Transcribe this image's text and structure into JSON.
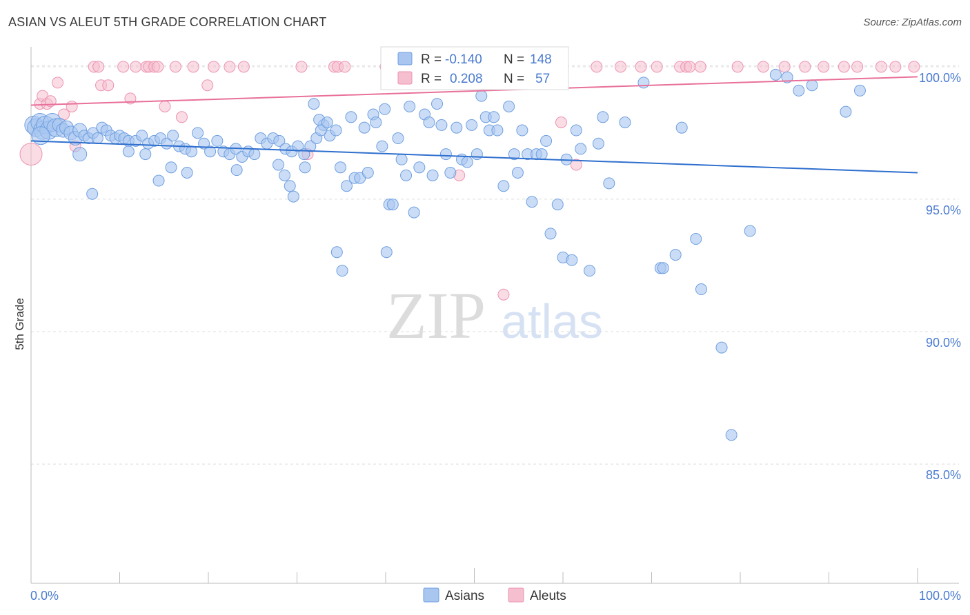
{
  "title": "ASIAN VS ALEUT 5TH GRADE CORRELATION CHART",
  "source": "Source: ZipAtlas.com",
  "watermark": {
    "zip": "ZIP",
    "atlas": "atlas"
  },
  "colors": {
    "asian_fill": "#a9c6f0",
    "asian_stroke": "#6f9fe0",
    "asian_line": "#2f6fce",
    "aleut_fill": "#f6bfd0",
    "aleut_stroke": "#ec93b1",
    "aleut_line": "#e8709a",
    "tick_text": "#4a7bd0",
    "grid": "#dddddd"
  },
  "legend": {
    "rows": [
      {
        "r_label": "R =",
        "r_value": "-0.140",
        "n_label": "N =",
        "n_value": "148"
      },
      {
        "r_label": "R =",
        "r_value": "0.208",
        "n_label": "N =",
        "n_value": "57"
      }
    ]
  },
  "chart_data": {
    "type": "scatter",
    "title": "ASIAN VS ALEUT 5TH GRADE CORRELATION CHART",
    "xlabel": "",
    "ylabel": "5th Grade",
    "xlim": [
      0,
      100
    ],
    "ylim": [
      80.5,
      100.75
    ],
    "x_tick_labels": [
      "0.0%",
      "100.0%"
    ],
    "y_ticks": [
      85,
      90,
      95,
      100
    ],
    "y_tick_labels": [
      "85.0%",
      "90.0%",
      "95.0%",
      "100.0%"
    ],
    "grid": true,
    "legend_position": "top-center",
    "series": [
      {
        "name": "Asians",
        "trend": {
          "x": [
            0,
            100
          ],
          "y": [
            97.2,
            96.0
          ]
        },
        "points": [
          [
            0.3,
            97.8
          ],
          [
            0.6,
            97.7
          ],
          [
            1.0,
            97.9
          ],
          [
            1.3,
            97.6
          ],
          [
            1.6,
            97.8
          ],
          [
            2.0,
            97.6
          ],
          [
            2.4,
            97.9
          ],
          [
            2.8,
            97.7
          ],
          [
            3.2,
            97.8
          ],
          [
            3.6,
            97.6
          ],
          [
            4.0,
            97.7
          ],
          [
            4.5,
            97.5
          ],
          [
            5.0,
            97.3
          ],
          [
            5.5,
            97.6
          ],
          [
            6.0,
            97.4
          ],
          [
            6.5,
            97.3
          ],
          [
            7.0,
            97.5
          ],
          [
            7.5,
            97.3
          ],
          [
            8.0,
            97.7
          ],
          [
            8.5,
            97.6
          ],
          [
            9.0,
            97.4
          ],
          [
            9.5,
            97.3
          ],
          [
            10.0,
            97.4
          ],
          [
            10.5,
            97.3
          ],
          [
            11.0,
            97.2
          ],
          [
            11.8,
            97.2
          ],
          [
            12.5,
            97.4
          ],
          [
            13.2,
            97.1
          ],
          [
            13.9,
            97.2
          ],
          [
            14.6,
            97.3
          ],
          [
            15.3,
            97.1
          ],
          [
            16.0,
            97.4
          ],
          [
            16.7,
            97.0
          ],
          [
            17.4,
            96.9
          ],
          [
            18.1,
            96.8
          ],
          [
            18.8,
            97.5
          ],
          [
            19.5,
            97.1
          ],
          [
            20.2,
            96.8
          ],
          [
            21.0,
            97.2
          ],
          [
            21.7,
            96.8
          ],
          [
            22.4,
            96.7
          ],
          [
            23.1,
            96.9
          ],
          [
            23.8,
            96.6
          ],
          [
            24.5,
            96.8
          ],
          [
            25.2,
            96.7
          ],
          [
            25.9,
            97.3
          ],
          [
            26.6,
            97.1
          ],
          [
            27.3,
            97.3
          ],
          [
            28.0,
            97.2
          ],
          [
            28.7,
            96.9
          ],
          [
            29.4,
            96.8
          ],
          [
            30.1,
            97.0
          ],
          [
            30.8,
            96.7
          ],
          [
            31.5,
            97.0
          ],
          [
            32.2,
            97.3
          ],
          [
            33.0,
            97.8
          ],
          [
            33.7,
            97.4
          ],
          [
            34.4,
            97.6
          ],
          [
            5.5,
            96.7
          ],
          [
            11.0,
            96.8
          ],
          [
            12.9,
            96.7
          ],
          [
            14.4,
            95.7
          ],
          [
            15.8,
            96.2
          ],
          [
            17.6,
            96.0
          ],
          [
            23.2,
            96.1
          ],
          [
            27.9,
            96.3
          ],
          [
            28.6,
            95.9
          ],
          [
            29.2,
            95.5
          ],
          [
            29.6,
            95.1
          ],
          [
            30.9,
            96.2
          ],
          [
            31.9,
            98.6
          ],
          [
            32.5,
            98.0
          ],
          [
            32.7,
            97.6
          ],
          [
            33.4,
            97.9
          ],
          [
            34.9,
            96.2
          ],
          [
            35.6,
            95.5
          ],
          [
            36.1,
            98.1
          ],
          [
            36.5,
            95.8
          ],
          [
            37.1,
            95.8
          ],
          [
            37.6,
            97.7
          ],
          [
            38.0,
            96.0
          ],
          [
            38.6,
            98.2
          ],
          [
            38.9,
            97.9
          ],
          [
            39.6,
            97.0
          ],
          [
            39.9,
            98.4
          ],
          [
            40.4,
            94.8
          ],
          [
            40.8,
            94.8
          ],
          [
            41.4,
            97.3
          ],
          [
            41.8,
            96.5
          ],
          [
            42.3,
            95.9
          ],
          [
            42.7,
            98.5
          ],
          [
            43.2,
            94.5
          ],
          [
            43.8,
            96.2
          ],
          [
            44.4,
            98.2
          ],
          [
            44.9,
            97.9
          ],
          [
            45.3,
            95.9
          ],
          [
            45.8,
            98.6
          ],
          [
            46.3,
            97.8
          ],
          [
            46.8,
            96.7
          ],
          [
            47.3,
            96.0
          ],
          [
            48.0,
            97.7
          ],
          [
            48.6,
            96.5
          ],
          [
            49.2,
            96.4
          ],
          [
            49.7,
            97.8
          ],
          [
            50.3,
            96.7
          ],
          [
            50.8,
            98.9
          ],
          [
            51.3,
            98.1
          ],
          [
            51.7,
            97.6
          ],
          [
            52.2,
            98.1
          ],
          [
            52.6,
            97.6
          ],
          [
            53.3,
            95.5
          ],
          [
            53.9,
            98.5
          ],
          [
            54.5,
            96.7
          ],
          [
            54.9,
            96.0
          ],
          [
            55.4,
            97.6
          ],
          [
            56.0,
            96.7
          ],
          [
            56.5,
            94.9
          ],
          [
            57.0,
            96.7
          ],
          [
            57.6,
            96.7
          ],
          [
            58.1,
            97.2
          ],
          [
            58.6,
            93.7
          ],
          [
            59.4,
            94.8
          ],
          [
            60.0,
            92.8
          ],
          [
            60.4,
            96.5
          ],
          [
            61.0,
            92.7
          ],
          [
            61.5,
            97.6
          ],
          [
            62.0,
            96.9
          ],
          [
            63.0,
            92.3
          ],
          [
            64.0,
            97.1
          ],
          [
            64.5,
            98.1
          ],
          [
            65.2,
            95.6
          ],
          [
            67.0,
            97.9
          ],
          [
            69.1,
            99.4
          ],
          [
            71.0,
            92.4
          ],
          [
            71.3,
            92.4
          ],
          [
            72.7,
            92.9
          ],
          [
            73.4,
            97.7
          ],
          [
            75.0,
            93.5
          ],
          [
            75.6,
            91.6
          ],
          [
            77.9,
            89.4
          ],
          [
            79.0,
            86.1
          ],
          [
            81.1,
            93.8
          ],
          [
            84.0,
            99.7
          ],
          [
            85.3,
            99.6
          ],
          [
            86.6,
            99.1
          ],
          [
            88.1,
            99.3
          ],
          [
            91.9,
            98.3
          ],
          [
            93.5,
            99.1
          ],
          [
            34.5,
            93.0
          ],
          [
            35.1,
            92.3
          ],
          [
            40.1,
            93.0
          ],
          [
            1.1,
            97.4
          ],
          [
            6.9,
            95.2
          ]
        ],
        "sizes_note": "larger markers near x=0 cluster"
      },
      {
        "name": "Aleuts",
        "trend": {
          "x": [
            0,
            100
          ],
          "y": [
            98.55,
            99.62
          ]
        },
        "points": [
          [
            0.0,
            96.7
          ],
          [
            1.0,
            98.6
          ],
          [
            1.3,
            98.9
          ],
          [
            1.8,
            98.6
          ],
          [
            2.2,
            98.7
          ],
          [
            3.0,
            99.4
          ],
          [
            3.7,
            98.2
          ],
          [
            4.6,
            98.5
          ],
          [
            5.0,
            97.0
          ],
          [
            7.1,
            100.0
          ],
          [
            7.6,
            100.0
          ],
          [
            7.9,
            99.3
          ],
          [
            8.7,
            99.3
          ],
          [
            10.4,
            100.0
          ],
          [
            11.2,
            98.8
          ],
          [
            11.8,
            100.0
          ],
          [
            13.0,
            100.0
          ],
          [
            13.3,
            100.0
          ],
          [
            13.9,
            100.0
          ],
          [
            14.3,
            100.0
          ],
          [
            15.1,
            98.5
          ],
          [
            16.3,
            100.0
          ],
          [
            17.0,
            98.1
          ],
          [
            18.3,
            100.0
          ],
          [
            19.9,
            99.3
          ],
          [
            20.6,
            100.0
          ],
          [
            22.4,
            100.0
          ],
          [
            24.0,
            100.0
          ],
          [
            30.5,
            100.0
          ],
          [
            31.2,
            96.7
          ],
          [
            34.2,
            100.0
          ],
          [
            34.6,
            100.0
          ],
          [
            35.4,
            100.0
          ],
          [
            40.0,
            100.0
          ],
          [
            41.5,
            100.0
          ],
          [
            42.0,
            100.0
          ],
          [
            45.8,
            100.0
          ],
          [
            47.0,
            100.0
          ],
          [
            48.3,
            95.9
          ],
          [
            50.1,
            100.0
          ],
          [
            50.5,
            100.0
          ],
          [
            53.3,
            91.4
          ],
          [
            56.3,
            100.0
          ],
          [
            59.8,
            97.9
          ],
          [
            61.5,
            96.3
          ],
          [
            63.8,
            100.0
          ],
          [
            66.5,
            100.0
          ],
          [
            68.8,
            100.0
          ],
          [
            70.6,
            100.0
          ],
          [
            73.2,
            100.0
          ],
          [
            73.9,
            100.0
          ],
          [
            74.3,
            100.0
          ],
          [
            75.5,
            100.0
          ],
          [
            79.7,
            100.0
          ],
          [
            82.6,
            100.0
          ],
          [
            85.0,
            100.0
          ],
          [
            87.3,
            100.0
          ],
          [
            89.4,
            100.0
          ],
          [
            91.7,
            100.0
          ],
          [
            93.2,
            100.0
          ],
          [
            95.9,
            100.0
          ],
          [
            97.5,
            100.0
          ],
          [
            99.6,
            100.0
          ]
        ]
      }
    ]
  },
  "bottom_legend": {
    "items": [
      {
        "label": "Asians"
      },
      {
        "label": "Aleuts"
      }
    ]
  }
}
